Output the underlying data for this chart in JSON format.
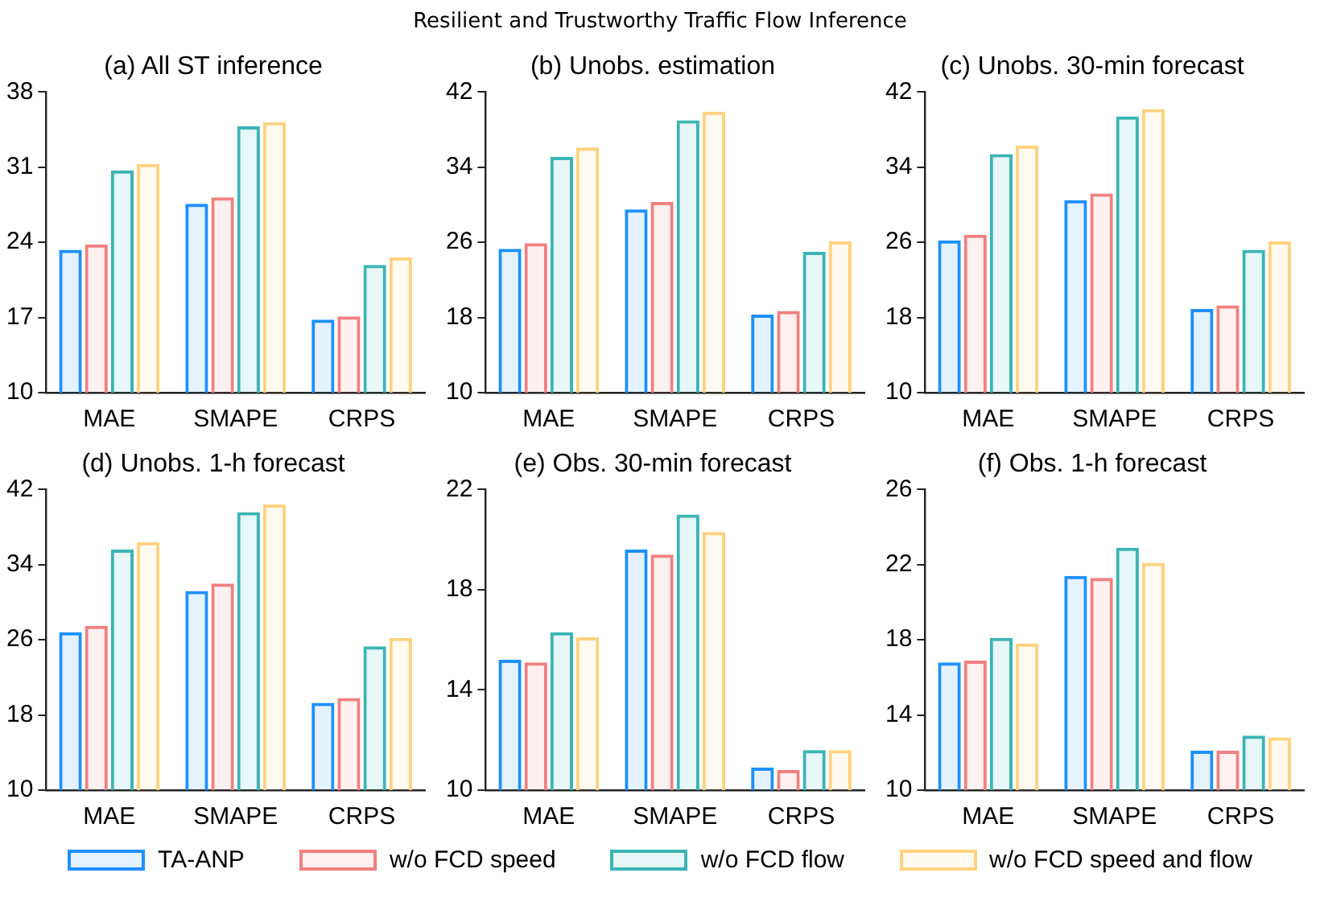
{
  "chart_data": [
    {
      "type": "bar",
      "title": "(a) All ST inference",
      "annotations": [
        "Resilient and Trustworthy Traffic Flow Inference"
      ],
      "categories": [
        "MAE",
        "SMAPE",
        "CRPS"
      ],
      "ylim": [
        10,
        38
      ],
      "yticks": [
        10,
        17,
        24,
        31,
        38
      ],
      "grid": false,
      "legend": "bottom",
      "series": [
        {
          "name": "TA-ANP",
          "color": "#1e90ff",
          "values": [
            23.3,
            27.6,
            16.8
          ]
        },
        {
          "name": "w/o FCD speed",
          "color": "#f08080",
          "values": [
            23.8,
            28.2,
            17.1
          ]
        },
        {
          "name": "w/o FCD flow",
          "color": "#3cb4b4",
          "values": [
            30.7,
            34.8,
            21.9
          ]
        },
        {
          "name": "w/o FCD speed and flow",
          "color": "#ffd27f",
          "values": [
            31.3,
            35.2,
            22.6
          ]
        }
      ]
    },
    {
      "type": "bar",
      "title": "(b) Unobs. estimation",
      "categories": [
        "MAE",
        "SMAPE",
        "CRPS"
      ],
      "ylim": [
        10,
        42
      ],
      "yticks": [
        10,
        18,
        26,
        34,
        42
      ],
      "grid": false,
      "series": [
        {
          "color": "#1e90ff",
          "values": [
            25.3,
            29.5,
            18.3
          ]
        },
        {
          "color": "#f08080",
          "values": [
            25.9,
            30.3,
            18.7
          ]
        },
        {
          "color": "#3cb4b4",
          "values": [
            35.1,
            39.0,
            25.0
          ]
        },
        {
          "color": "#ffd27f",
          "values": [
            36.1,
            39.9,
            26.1
          ]
        }
      ]
    },
    {
      "type": "bar",
      "title": "(c) Unobs. 30-min forecast",
      "categories": [
        "MAE",
        "SMAPE",
        "CRPS"
      ],
      "ylim": [
        10,
        42
      ],
      "yticks": [
        10,
        18,
        26,
        34,
        42
      ],
      "grid": false,
      "series": [
        {
          "color": "#1e90ff",
          "values": [
            26.2,
            30.5,
            18.9
          ]
        },
        {
          "color": "#f08080",
          "values": [
            26.8,
            31.2,
            19.3
          ]
        },
        {
          "color": "#3cb4b4",
          "values": [
            35.4,
            39.4,
            25.2
          ]
        },
        {
          "color": "#ffd27f",
          "values": [
            36.3,
            40.2,
            26.1
          ]
        }
      ]
    },
    {
      "type": "bar",
      "title": "(d) Unobs. 1-h forecast",
      "categories": [
        "MAE",
        "SMAPE",
        "CRPS"
      ],
      "ylim": [
        10,
        42
      ],
      "yticks": [
        10,
        18,
        26,
        34,
        42
      ],
      "grid": false,
      "series": [
        {
          "color": "#1e90ff",
          "values": [
            26.8,
            31.2,
            19.3
          ]
        },
        {
          "color": "#f08080",
          "values": [
            27.5,
            32.0,
            19.8
          ]
        },
        {
          "color": "#3cb4b4",
          "values": [
            35.6,
            39.6,
            25.3
          ]
        },
        {
          "color": "#ffd27f",
          "values": [
            36.4,
            40.4,
            26.2
          ]
        }
      ]
    },
    {
      "type": "bar",
      "title": "(e) Obs. 30-min forecast",
      "categories": [
        "MAE",
        "SMAPE",
        "CRPS"
      ],
      "ylim": [
        10,
        22
      ],
      "yticks": [
        10,
        14,
        18,
        22
      ],
      "grid": false,
      "series": [
        {
          "color": "#1e90ff",
          "values": [
            15.2,
            19.6,
            10.9
          ]
        },
        {
          "color": "#f08080",
          "values": [
            15.1,
            19.4,
            10.8
          ]
        },
        {
          "color": "#3cb4b4",
          "values": [
            16.3,
            21.0,
            11.6
          ]
        },
        {
          "color": "#ffd27f",
          "values": [
            16.1,
            20.3,
            11.6
          ]
        }
      ]
    },
    {
      "type": "bar",
      "title": "(f) Obs. 1-h forecast",
      "categories": [
        "MAE",
        "SMAPE",
        "CRPS"
      ],
      "ylim": [
        10,
        26
      ],
      "yticks": [
        10,
        14,
        18,
        22,
        26
      ],
      "grid": false,
      "series": [
        {
          "color": "#1e90ff",
          "values": [
            16.8,
            21.4,
            12.1
          ]
        },
        {
          "color": "#f08080",
          "values": [
            16.9,
            21.3,
            12.1
          ]
        },
        {
          "color": "#3cb4b4",
          "values": [
            18.1,
            22.9,
            12.9
          ]
        },
        {
          "color": "#ffd27f",
          "values": [
            17.8,
            22.1,
            12.8
          ]
        }
      ]
    }
  ]
}
